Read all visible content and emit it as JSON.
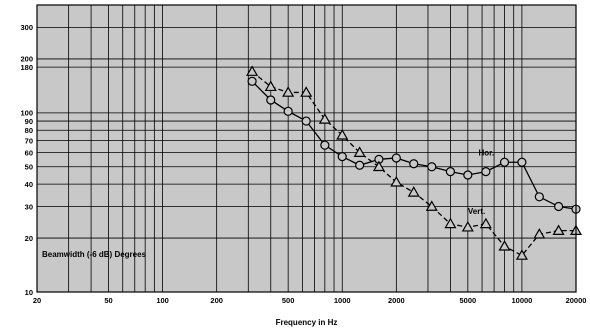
{
  "chart_data": {
    "type": "line",
    "title": "",
    "xlabel": "Frequency in Hz",
    "ylabel": "",
    "annotation": "Beamwidth (-6 dB) Degrees",
    "x_scale": "log",
    "y_scale": "log",
    "xlim": [
      20,
      20000
    ],
    "ylim": [
      10,
      400
    ],
    "x_ticks": [
      20,
      50,
      100,
      200,
      500,
      1000,
      2000,
      5000,
      10000,
      20000
    ],
    "x_tick_labels": [
      "20",
      "50",
      "100",
      "200",
      "500",
      "1000",
      "2000",
      "5000",
      "10000",
      "20000"
    ],
    "y_ticks": [
      10,
      20,
      30,
      40,
      50,
      60,
      70,
      80,
      90,
      100,
      180,
      200,
      300
    ],
    "y_tick_labels": [
      "10",
      "20",
      "30",
      "40",
      "50",
      "60",
      "70",
      "80",
      "90",
      "100",
      "180",
      "200",
      "300"
    ],
    "grid": true,
    "background": "#c8c8c8",
    "series": [
      {
        "name": "Hor.",
        "marker": "circle",
        "line_style": "solid",
        "x": [
          315,
          400,
          500,
          630,
          800,
          1000,
          1250,
          1600,
          2000,
          2500,
          3150,
          4000,
          5000,
          6300,
          8000,
          10000,
          12500,
          16000,
          20000
        ],
        "values": [
          150,
          118,
          102,
          90,
          66,
          57,
          51,
          55,
          56,
          52,
          50,
          47,
          45,
          47,
          53,
          53,
          34,
          30,
          29
        ]
      },
      {
        "name": "Vert.",
        "marker": "triangle",
        "line_style": "dashed",
        "x": [
          315,
          400,
          500,
          630,
          800,
          1000,
          1250,
          1600,
          2000,
          2500,
          3150,
          4000,
          5000,
          6300,
          8000,
          10000,
          12500,
          16000,
          20000
        ],
        "values": [
          170,
          140,
          130,
          130,
          92,
          75,
          60,
          50,
          41,
          36,
          30,
          24,
          23,
          24,
          18,
          16,
          21,
          22,
          22
        ]
      }
    ]
  }
}
